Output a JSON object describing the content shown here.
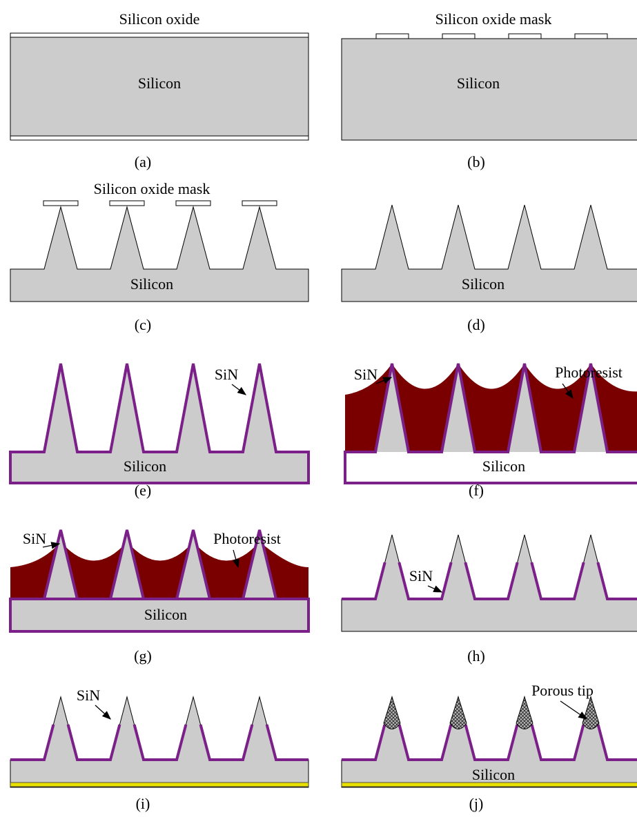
{
  "panels": [
    {
      "caption": "(a)",
      "labels": [
        "Silicon oxide",
        "Silicon"
      ]
    },
    {
      "caption": "(b)",
      "labels": [
        "Silicon oxide mask",
        "Silicon"
      ]
    },
    {
      "caption": "(c)",
      "labels": [
        "Silicon oxide mask",
        "Silicon"
      ]
    },
    {
      "caption": "(d)",
      "labels": [
        "Silicon"
      ]
    },
    {
      "caption": "(e)",
      "labels": [
        "SiN",
        "Silicon"
      ]
    },
    {
      "caption": "(f)",
      "labels": [
        "SiN",
        "Photoresist",
        "Silicon"
      ]
    },
    {
      "caption": "(g)",
      "labels": [
        "SiN",
        "Photoresist",
        "Silicon"
      ]
    },
    {
      "caption": "(h)",
      "labels": [
        "SiN"
      ]
    },
    {
      "caption": "(i)",
      "labels": [
        "SiN"
      ]
    },
    {
      "caption": "(j)",
      "labels": [
        "Porous tip",
        "Silicon"
      ]
    }
  ]
}
